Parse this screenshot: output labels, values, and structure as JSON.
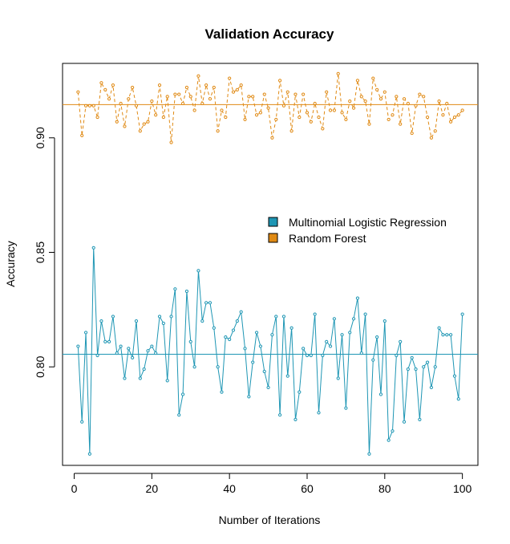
{
  "chart_data": {
    "type": "line",
    "title": "Validation Accuracy",
    "xlabel": "Number of Iterations",
    "ylabel": "Accuracy",
    "xlim": [
      -3,
      104
    ],
    "ylim": [
      0.757,
      0.9325
    ],
    "xticks": [
      0,
      20,
      40,
      60,
      80,
      100
    ],
    "xtick_labels": [
      "0",
      "20",
      "40",
      "60",
      "80",
      "100"
    ],
    "yticks": [
      0.8,
      0.85,
      0.9
    ],
    "ytick_labels": [
      "0.80",
      "0.85",
      "0.90"
    ],
    "grid": false,
    "legend_position": "right",
    "x": [
      1,
      2,
      3,
      4,
      5,
      6,
      7,
      8,
      9,
      10,
      11,
      12,
      13,
      14,
      15,
      16,
      17,
      18,
      19,
      20,
      21,
      22,
      23,
      24,
      25,
      26,
      27,
      28,
      29,
      30,
      31,
      32,
      33,
      34,
      35,
      36,
      37,
      38,
      39,
      40,
      41,
      42,
      43,
      44,
      45,
      46,
      47,
      48,
      49,
      50,
      51,
      52,
      53,
      54,
      55,
      56,
      57,
      58,
      59,
      60,
      61,
      62,
      63,
      64,
      65,
      66,
      67,
      68,
      69,
      70,
      71,
      72,
      73,
      74,
      75,
      76,
      77,
      78,
      79,
      80,
      81,
      82,
      83,
      84,
      85,
      86,
      87,
      88,
      89,
      90,
      91,
      92,
      93,
      94,
      95,
      96,
      97,
      98,
      99,
      100
    ],
    "series": [
      {
        "name": "Multinomial Logistic Regression",
        "color": "#1e96b4",
        "line_style": "solid",
        "mean": 0.8055,
        "values": [
          0.809,
          0.776,
          0.815,
          0.762,
          0.852,
          0.805,
          0.82,
          0.811,
          0.811,
          0.822,
          0.806,
          0.809,
          0.795,
          0.808,
          0.804,
          0.82,
          0.795,
          0.799,
          0.807,
          0.809,
          0.806,
          0.822,
          0.819,
          0.794,
          0.822,
          0.834,
          0.779,
          0.788,
          0.833,
          0.811,
          0.8,
          0.842,
          0.82,
          0.828,
          0.828,
          0.817,
          0.8,
          0.789,
          0.813,
          0.812,
          0.816,
          0.82,
          0.824,
          0.808,
          0.787,
          0.802,
          0.815,
          0.809,
          0.798,
          0.791,
          0.814,
          0.822,
          0.779,
          0.822,
          0.796,
          0.817,
          0.777,
          0.789,
          0.808,
          0.805,
          0.805,
          0.823,
          0.78,
          0.805,
          0.811,
          0.809,
          0.821,
          0.795,
          0.814,
          0.782,
          0.815,
          0.821,
          0.83,
          0.806,
          0.823,
          0.762,
          0.803,
          0.813,
          0.788,
          0.82,
          0.768,
          0.772,
          0.805,
          0.811,
          0.776,
          0.799,
          0.804,
          0.799,
          0.777,
          0.8,
          0.802,
          0.791,
          0.8,
          0.817,
          0.814,
          0.814,
          0.814,
          0.796,
          0.786,
          0.823
        ]
      },
      {
        "name": "Random Forest",
        "color": "#e08a14",
        "line_style": "dashed",
        "mean": 0.9145,
        "values": [
          0.92,
          0.901,
          0.914,
          0.914,
          0.914,
          0.909,
          0.924,
          0.921,
          0.917,
          0.923,
          0.907,
          0.915,
          0.905,
          0.917,
          0.922,
          0.914,
          0.903,
          0.906,
          0.907,
          0.916,
          0.91,
          0.923,
          0.909,
          0.918,
          0.898,
          0.919,
          0.919,
          0.915,
          0.922,
          0.918,
          0.912,
          0.927,
          0.915,
          0.923,
          0.917,
          0.922,
          0.903,
          0.912,
          0.909,
          0.926,
          0.92,
          0.921,
          0.923,
          0.908,
          0.918,
          0.918,
          0.91,
          0.911,
          0.919,
          0.913,
          0.9,
          0.908,
          0.925,
          0.914,
          0.92,
          0.903,
          0.919,
          0.909,
          0.919,
          0.911,
          0.907,
          0.915,
          0.909,
          0.904,
          0.92,
          0.912,
          0.912,
          0.928,
          0.911,
          0.908,
          0.916,
          0.913,
          0.925,
          0.918,
          0.916,
          0.906,
          0.926,
          0.921,
          0.917,
          0.92,
          0.908,
          0.91,
          0.918,
          0.906,
          0.917,
          0.915,
          0.902,
          0.914,
          0.919,
          0.918,
          0.909,
          0.9,
          0.903,
          0.916,
          0.91,
          0.915,
          0.907,
          0.909,
          0.91,
          0.912
        ]
      }
    ]
  }
}
